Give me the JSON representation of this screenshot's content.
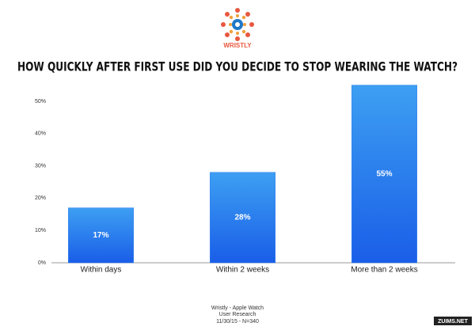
{
  "logo": "WRISTLY",
  "chart_data": {
    "type": "bar",
    "title": "HOW QUICKLY AFTER FIRST USE DID YOU DECIDE TO STOP WEARING THE WATCH?",
    "categories": [
      "Within days",
      "Within 2 weeks",
      "More than 2 weeks"
    ],
    "values": [
      17,
      28,
      55
    ],
    "value_labels": [
      "17%",
      "28%",
      "55%"
    ],
    "color": "#2277ee",
    "ylim": [
      0,
      55
    ],
    "yticks": [
      {
        "value": 0,
        "label": "0%"
      },
      {
        "value": 10,
        "label": "10%"
      },
      {
        "value": 20,
        "label": "20%"
      },
      {
        "value": 30,
        "label": "30%"
      },
      {
        "value": 40,
        "label": "40%"
      },
      {
        "value": 50,
        "label": "50%"
      }
    ],
    "grid": false
  },
  "footer": [
    "Wristly - Apple Watch",
    "User Research",
    "11/30/15 - N=340"
  ],
  "watermark": "ZUIMS.NET"
}
